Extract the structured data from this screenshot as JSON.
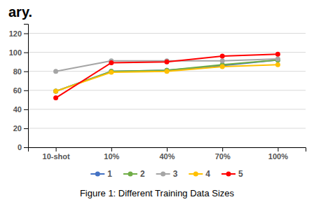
{
  "chart_data": {
    "type": "line",
    "title": "ary.",
    "caption": "Figure 1:  Different Training Data Sizes",
    "categories": [
      "10-shot",
      "10%",
      "40%",
      "70%",
      "100%"
    ],
    "series": [
      {
        "name": "1",
        "color": "#4472C4",
        "marker": "circle",
        "values": [
          59,
          80,
          81,
          86,
          92
        ]
      },
      {
        "name": "2",
        "color": "#70AD47",
        "marker": "circle",
        "values": [
          59,
          80,
          81,
          87,
          92
        ]
      },
      {
        "name": "3",
        "color": "#A5A5A5",
        "marker": "circle",
        "values": [
          80,
          91,
          91,
          91,
          93
        ]
      },
      {
        "name": "4",
        "color": "#FFC000",
        "marker": "circle",
        "values": [
          59,
          79,
          80,
          85,
          87
        ]
      },
      {
        "name": "5",
        "color": "#FF0000",
        "marker": "circle",
        "values": [
          52,
          89,
          90,
          96,
          98
        ]
      }
    ],
    "ylim": [
      0,
      130
    ],
    "yticks": [
      0,
      20,
      40,
      60,
      80,
      100,
      120
    ],
    "grid": true,
    "legend": "bottom"
  }
}
